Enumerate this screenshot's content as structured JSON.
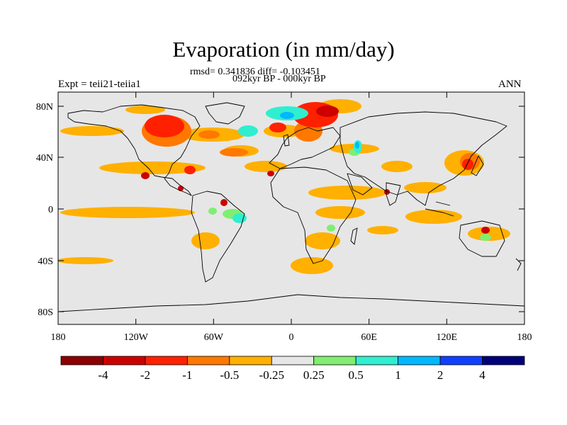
{
  "title": "Evaporation (in mm/day)",
  "stats": "rmsd= 0.341836 diff= -0.103451",
  "period": "092kyr BP - 000kyr BP",
  "experiment": "Expt = teii21-teiia1",
  "season": "ANN",
  "lat_ticks": [
    "80N",
    "40N",
    "0",
    "40S",
    "80S"
  ],
  "lon_ticks": [
    "180",
    "120W",
    "60W",
    "0",
    "60E",
    "120E",
    "180"
  ],
  "colorbar": {
    "labels": [
      "-4",
      "-2",
      "-1",
      "-0.5",
      "-0.25",
      "0.25",
      "0.5",
      "1",
      "2",
      "4"
    ],
    "colors": [
      "#8b0000",
      "#cc0000",
      "#ff2000",
      "#ff7800",
      "#ffb000",
      "#e6e6e6",
      "#80ee70",
      "#30eed0",
      "#00b8ff",
      "#1040ff",
      "#00007a"
    ]
  },
  "background_color": "#e6e6e6"
}
